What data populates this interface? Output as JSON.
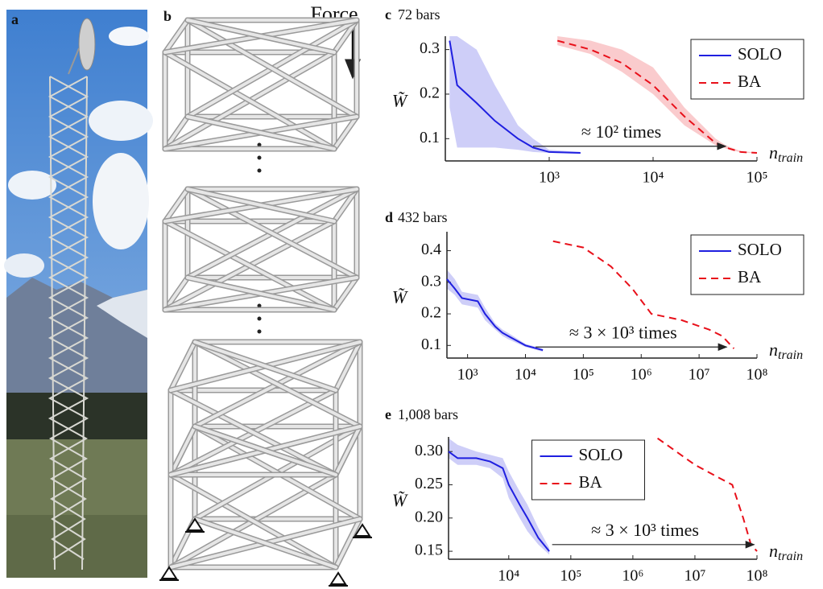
{
  "figure": {
    "panel_a": "a",
    "panel_b": "b",
    "force_label": "Force"
  },
  "chart_data": [
    {
      "type": "line",
      "panel": "c",
      "title": "72 bars",
      "xlabel": "n",
      "xlabel_sub": "train",
      "ylabel": "W̃",
      "xscale": "log",
      "xlim": [
        100,
        100000
      ],
      "ylim": [
        0.05,
        0.33
      ],
      "xticks": [
        {
          "value": 1000,
          "label": "10³"
        },
        {
          "value": 10000,
          "label": "10⁴"
        },
        {
          "value": 100000,
          "label": "10⁵"
        }
      ],
      "yticks": [
        0.1,
        0.2,
        0.3
      ],
      "legend": "upper right",
      "annotation": {
        "text": "≈ 10² times",
        "x": [
          700,
          50000
        ],
        "y": 0.083
      },
      "series": [
        {
          "name": "SOLO",
          "color": "#1f1fe0",
          "linestyle": "solid",
          "x": [
            110,
            130,
            200,
            300,
            500,
            700,
            1000,
            2000
          ],
          "values": [
            0.32,
            0.22,
            0.18,
            0.14,
            0.1,
            0.08,
            0.07,
            0.068
          ],
          "lower": [
            0.17,
            0.08,
            0.08,
            0.08,
            0.075,
            0.07,
            0.068,
            0.066
          ],
          "upper": [
            0.33,
            0.33,
            0.3,
            0.22,
            0.13,
            0.1,
            0.075,
            0.07
          ]
        },
        {
          "name": "BA",
          "color": "#e8101a",
          "linestyle": "dashed",
          "x": [
            1200,
            2500,
            5000,
            10000,
            20000,
            40000,
            50000,
            70000,
            100000
          ],
          "values": [
            0.32,
            0.3,
            0.27,
            0.22,
            0.15,
            0.09,
            0.08,
            0.07,
            0.068
          ],
          "lower": [
            0.31,
            0.29,
            0.25,
            0.2,
            0.13,
            0.085,
            0.078,
            0.069,
            0.067
          ],
          "upper": [
            0.33,
            0.32,
            0.3,
            0.26,
            0.17,
            0.1,
            0.085,
            0.072,
            0.069
          ]
        }
      ]
    },
    {
      "type": "line",
      "panel": "d",
      "title": "432 bars",
      "xlabel": "n",
      "xlabel_sub": "train",
      "ylabel": "W̃",
      "xscale": "log",
      "xlim": [
        440,
        100000000
      ],
      "ylim": [
        0.06,
        0.46
      ],
      "xticks": [
        {
          "value": 1000,
          "label": "10³"
        },
        {
          "value": 10000,
          "label": "10⁴"
        },
        {
          "value": 100000,
          "label": "10⁵"
        },
        {
          "value": 1000000,
          "label": "10⁶"
        },
        {
          "value": 10000000,
          "label": "10⁷"
        },
        {
          "value": 100000000,
          "label": "10⁸"
        }
      ],
      "yticks": [
        0.1,
        0.2,
        0.3,
        0.4
      ],
      "legend": "upper right",
      "annotation": {
        "text": "≈ 3 × 10³ times",
        "x": [
          15000,
          30000000
        ],
        "y": 0.095
      },
      "series": [
        {
          "name": "SOLO",
          "color": "#1f1fe0",
          "linestyle": "solid",
          "x": [
            440,
            600,
            800,
            1500,
            2000,
            3000,
            4000,
            5000,
            10000,
            20000
          ],
          "values": [
            0.31,
            0.28,
            0.25,
            0.24,
            0.2,
            0.16,
            0.14,
            0.13,
            0.1,
            0.085
          ],
          "lower": [
            0.28,
            0.26,
            0.23,
            0.22,
            0.18,
            0.15,
            0.13,
            0.12,
            0.095,
            0.08
          ],
          "upper": [
            0.34,
            0.31,
            0.27,
            0.26,
            0.22,
            0.17,
            0.15,
            0.14,
            0.105,
            0.09
          ]
        },
        {
          "name": "BA",
          "color": "#e8101a",
          "linestyle": "dashed",
          "x": [
            30000,
            100000,
            300000,
            700000,
            1500000,
            5000000,
            15000000,
            25000000,
            40000000
          ],
          "values": [
            0.43,
            0.41,
            0.35,
            0.28,
            0.2,
            0.18,
            0.15,
            0.13,
            0.09
          ]
        }
      ]
    },
    {
      "type": "line",
      "panel": "e",
      "title": "1,008 bars",
      "xlabel": "n",
      "xlabel_sub": "train",
      "ylabel": "W̃",
      "xscale": "log",
      "xlim": [
        1070,
        100000000
      ],
      "ylim": [
        0.138,
        0.322
      ],
      "xticks": [
        {
          "value": 10000,
          "label": "10⁴"
        },
        {
          "value": 100000,
          "label": "10⁵"
        },
        {
          "value": 1000000,
          "label": "10⁶"
        },
        {
          "value": 10000000,
          "label": "10⁷"
        },
        {
          "value": 100000000,
          "label": "10⁸"
        }
      ],
      "yticks": [
        {
          "value": 0.15,
          "label": "0.15"
        },
        {
          "value": 0.2,
          "label": "0.20"
        },
        {
          "value": 0.25,
          "label": "0.25"
        },
        {
          "value": 0.3,
          "label": "0.30"
        }
      ],
      "legend": "upper center",
      "annotation": {
        "text": "≈ 3 × 10³ times",
        "x": [
          50000,
          90000000
        ],
        "y": 0.16
      },
      "series": [
        {
          "name": "SOLO",
          "color": "#1f1fe0",
          "linestyle": "solid",
          "x": [
            1070,
            1500,
            3000,
            5000,
            8000,
            10000,
            15000,
            20000,
            30000,
            45000
          ],
          "values": [
            0.3,
            0.29,
            0.29,
            0.285,
            0.275,
            0.25,
            0.22,
            0.2,
            0.17,
            0.15
          ],
          "lower": [
            0.29,
            0.28,
            0.28,
            0.275,
            0.26,
            0.23,
            0.2,
            0.18,
            0.16,
            0.145
          ],
          "upper": [
            0.32,
            0.31,
            0.3,
            0.295,
            0.29,
            0.27,
            0.24,
            0.22,
            0.185,
            0.155
          ]
        },
        {
          "name": "BA",
          "color": "#e8101a",
          "linestyle": "dashed",
          "x": [
            2500000,
            5000000,
            10000000,
            25000000,
            40000000,
            60000000,
            80000000,
            100000000
          ],
          "values": [
            0.32,
            0.3,
            0.28,
            0.26,
            0.25,
            0.2,
            0.16,
            0.15
          ]
        }
      ]
    }
  ]
}
